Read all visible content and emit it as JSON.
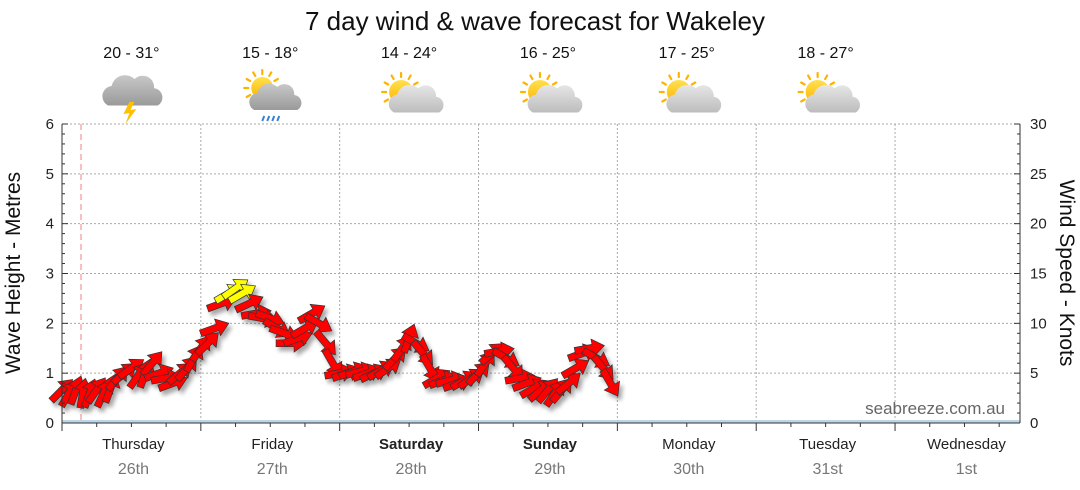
{
  "chart_data": {
    "type": "line",
    "title": "7 day wind & wave forecast for Wakeley",
    "ylabel_left": "Wave Height - Metres",
    "ylabel_right": "Wind Speed - Knots",
    "ylim_left": [
      0,
      6
    ],
    "ylim_right": [
      0,
      30
    ],
    "yticks_left": [
      "0",
      "1",
      "2",
      "3",
      "4",
      "5",
      "6"
    ],
    "yticks_right": [
      "0",
      "5",
      "10",
      "15",
      "20",
      "25",
      "30"
    ],
    "grid": true,
    "days": [
      {
        "day": "Thursday",
        "date": "26th",
        "temp": "20 - 31°",
        "icon": "storm-icon",
        "bold": false
      },
      {
        "day": "Friday",
        "date": "27th",
        "temp": "15 - 18°",
        "icon": "sun-cloud-rain-icon",
        "bold": false
      },
      {
        "day": "Saturday",
        "date": "28th",
        "temp": "14 - 24°",
        "icon": "partly-cloudy-icon",
        "bold": true
      },
      {
        "day": "Sunday",
        "date": "29th",
        "temp": "16 - 25°",
        "icon": "partly-cloudy-icon",
        "bold": true
      },
      {
        "day": "Monday",
        "date": "30th",
        "temp": "17 - 25°",
        "icon": "partly-cloudy-icon",
        "bold": false
      },
      {
        "day": "Tuesday",
        "date": "31st",
        "temp": "18 - 27°",
        "icon": "partly-cloudy-icon",
        "bold": false
      },
      {
        "day": "Wednesday",
        "date": "1st",
        "temp": "",
        "icon": "",
        "bold": false
      }
    ],
    "wind_series": {
      "name": "Wind Speed",
      "color_normal": "#ff0000",
      "color_strong": "#ffff00",
      "points": [
        {
          "t": 0.0,
          "knots": 3.3,
          "dir": 225
        },
        {
          "t": 0.05,
          "knots": 3.0,
          "dir": 210
        },
        {
          "t": 0.1,
          "knots": 3.3,
          "dir": 200
        },
        {
          "t": 0.15,
          "knots": 3.0,
          "dir": 190
        },
        {
          "t": 0.2,
          "knots": 3.0,
          "dir": 200
        },
        {
          "t": 0.25,
          "knots": 3.3,
          "dir": 215
        },
        {
          "t": 0.3,
          "knots": 3.0,
          "dir": 205
        },
        {
          "t": 0.35,
          "knots": 3.5,
          "dir": 200
        },
        {
          "t": 0.4,
          "knots": 4.5,
          "dir": 220
        },
        {
          "t": 0.45,
          "knots": 5.0,
          "dir": 230
        },
        {
          "t": 0.5,
          "knots": 5.5,
          "dir": 235
        },
        {
          "t": 0.55,
          "knots": 4.8,
          "dir": 215
        },
        {
          "t": 0.6,
          "knots": 5.0,
          "dir": 200
        },
        {
          "t": 0.65,
          "knots": 6.0,
          "dir": 220
        },
        {
          "t": 0.7,
          "knots": 5.0,
          "dir": 250
        },
        {
          "t": 0.75,
          "knots": 4.5,
          "dir": 260
        },
        {
          "t": 0.8,
          "knots": 4.0,
          "dir": 250
        },
        {
          "t": 0.85,
          "knots": 5.0,
          "dir": 230
        },
        {
          "t": 0.9,
          "knots": 5.5,
          "dir": 220
        },
        {
          "t": 0.95,
          "knots": 6.5,
          "dir": 210
        },
        {
          "t": 1.0,
          "knots": 7.5,
          "dir": 215
        },
        {
          "t": 1.05,
          "knots": 8.0,
          "dir": 225
        },
        {
          "t": 1.1,
          "knots": 9.5,
          "dir": 250
        },
        {
          "t": 1.15,
          "knots": 12.0,
          "dir": 250
        },
        {
          "t": 1.2,
          "knots": 13.0,
          "dir": 240
        },
        {
          "t": 1.25,
          "knots": 13.5,
          "dir": 235
        },
        {
          "t": 1.3,
          "knots": 13.0,
          "dir": 240
        },
        {
          "t": 1.35,
          "knots": 12.0,
          "dir": 245
        },
        {
          "t": 1.4,
          "knots": 11.0,
          "dir": 260
        },
        {
          "t": 1.45,
          "knots": 10.5,
          "dir": 280
        },
        {
          "t": 1.5,
          "knots": 10.5,
          "dir": 290
        },
        {
          "t": 1.55,
          "knots": 9.5,
          "dir": 300
        },
        {
          "t": 1.6,
          "knots": 9.0,
          "dir": 290
        },
        {
          "t": 1.65,
          "knots": 8.0,
          "dir": 270
        },
        {
          "t": 1.7,
          "knots": 8.5,
          "dir": 250
        },
        {
          "t": 1.75,
          "knots": 9.5,
          "dir": 240
        },
        {
          "t": 1.8,
          "knots": 11.0,
          "dir": 240
        },
        {
          "t": 1.85,
          "knots": 10.0,
          "dir": 300
        },
        {
          "t": 1.9,
          "knots": 8.0,
          "dir": 320
        },
        {
          "t": 1.95,
          "knots": 6.0,
          "dir": 330
        },
        {
          "t": 2.0,
          "knots": 5.0,
          "dir": 260
        },
        {
          "t": 2.05,
          "knots": 5.0,
          "dir": 250
        },
        {
          "t": 2.1,
          "knots": 5.2,
          "dir": 250
        },
        {
          "t": 2.15,
          "knots": 5.2,
          "dir": 255
        },
        {
          "t": 2.2,
          "knots": 5.0,
          "dir": 250
        },
        {
          "t": 2.25,
          "knots": 5.0,
          "dir": 245
        },
        {
          "t": 2.3,
          "knots": 5.3,
          "dir": 240
        },
        {
          "t": 2.35,
          "knots": 5.5,
          "dir": 235
        },
        {
          "t": 2.4,
          "knots": 6.5,
          "dir": 225
        },
        {
          "t": 2.45,
          "knots": 7.5,
          "dir": 215
        },
        {
          "t": 2.5,
          "knots": 8.5,
          "dir": 200
        },
        {
          "t": 2.55,
          "knots": 8.0,
          "dir": 300
        },
        {
          "t": 2.6,
          "knots": 7.0,
          "dir": 320
        },
        {
          "t": 2.65,
          "knots": 5.5,
          "dir": 330
        },
        {
          "t": 2.7,
          "knots": 4.5,
          "dir": 240
        },
        {
          "t": 2.75,
          "knots": 4.3,
          "dir": 250
        },
        {
          "t": 2.8,
          "knots": 4.3,
          "dir": 255
        },
        {
          "t": 2.85,
          "knots": 4.0,
          "dir": 250
        },
        {
          "t": 2.9,
          "knots": 4.3,
          "dir": 240
        },
        {
          "t": 2.95,
          "knots": 4.5,
          "dir": 235
        },
        {
          "t": 3.0,
          "knots": 5.0,
          "dir": 225
        },
        {
          "t": 3.05,
          "knots": 6.0,
          "dir": 215
        },
        {
          "t": 3.1,
          "knots": 7.0,
          "dir": 230
        },
        {
          "t": 3.15,
          "knots": 7.2,
          "dir": 260
        },
        {
          "t": 3.2,
          "knots": 6.5,
          "dir": 300
        },
        {
          "t": 3.25,
          "knots": 5.5,
          "dir": 320
        },
        {
          "t": 3.3,
          "knots": 4.5,
          "dir": 260
        },
        {
          "t": 3.35,
          "knots": 4.0,
          "dir": 250
        },
        {
          "t": 3.4,
          "knots": 3.5,
          "dir": 240
        },
        {
          "t": 3.45,
          "knots": 3.3,
          "dir": 230
        },
        {
          "t": 3.5,
          "knots": 3.3,
          "dir": 220
        },
        {
          "t": 3.55,
          "knots": 3.0,
          "dir": 215
        },
        {
          "t": 3.6,
          "knots": 3.3,
          "dir": 220
        },
        {
          "t": 3.65,
          "knots": 4.0,
          "dir": 230
        },
        {
          "t": 3.7,
          "knots": 5.5,
          "dir": 240
        },
        {
          "t": 3.75,
          "knots": 7.0,
          "dir": 250
        },
        {
          "t": 3.8,
          "knots": 7.5,
          "dir": 260
        },
        {
          "t": 3.85,
          "knots": 6.5,
          "dir": 300
        },
        {
          "t": 3.9,
          "knots": 5.5,
          "dir": 320
        },
        {
          "t": 3.95,
          "knots": 4.0,
          "dir": 330
        }
      ]
    },
    "watermark": "seabreeze.com.au"
  }
}
